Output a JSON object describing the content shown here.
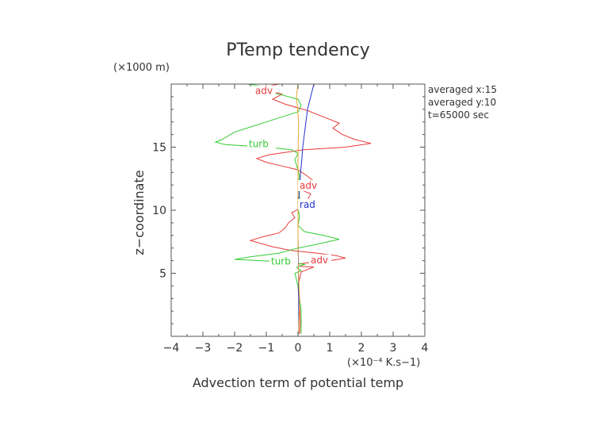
{
  "chart_data": {
    "type": "line",
    "title": "PTemp tendency",
    "xlabel": "Advection term of potential temp",
    "ylabel": "z−coordinate",
    "x_unit": "(×10⁻⁴ K.s−1)",
    "y_unit": "(×1000 m)",
    "xlim": [
      -4,
      4
    ],
    "ylim": [
      0,
      20
    ],
    "x_ticks": [
      -4,
      -3,
      -2,
      -1,
      0,
      1,
      2,
      3,
      4
    ],
    "y_ticks": [
      5,
      10,
      15
    ],
    "x_tick_labels": [
      "−4",
      "−3",
      "−2",
      "−1",
      "0",
      "1",
      "2",
      "3",
      "4"
    ],
    "y_tick_labels": [
      "5",
      "10",
      "15"
    ],
    "grid": false,
    "info_lines": [
      "averaged  x:15",
      "averaged  y:10",
      "t=65000 sec"
    ],
    "series": [
      {
        "name": "adv",
        "color": "#e83a3a",
        "points": [
          [
            0.05,
            0.2
          ],
          [
            0.07,
            1
          ],
          [
            0.06,
            2
          ],
          [
            0.03,
            3
          ],
          [
            0.0,
            4
          ],
          [
            0.1,
            5.1
          ],
          [
            0.3,
            5.3
          ],
          [
            0.5,
            5.5
          ],
          [
            -0.3,
            5.6
          ],
          [
            0.2,
            5.8
          ],
          [
            1.0,
            6.0
          ],
          [
            1.5,
            6.2
          ],
          [
            1.2,
            6.4
          ],
          [
            0.6,
            6.6
          ],
          [
            -0.2,
            6.8
          ],
          [
            -0.8,
            7.1
          ],
          [
            -1.5,
            7.6
          ],
          [
            -1.1,
            7.9
          ],
          [
            -0.6,
            8.2
          ],
          [
            -0.4,
            8.6
          ],
          [
            -0.3,
            9.0
          ],
          [
            -0.1,
            9.4
          ],
          [
            -0.2,
            9.8
          ],
          [
            0.1,
            10.2
          ],
          [
            0.0,
            10.6
          ],
          [
            0.3,
            10.8
          ],
          [
            0.4,
            11.3
          ],
          [
            0.1,
            11.6
          ],
          [
            0.25,
            12.0
          ],
          [
            0.5,
            12.3
          ],
          [
            0.3,
            12.7
          ],
          [
            0.0,
            13.2
          ],
          [
            -0.5,
            13.5
          ],
          [
            -1.0,
            13.8
          ],
          [
            -1.3,
            14.1
          ],
          [
            -0.9,
            14.4
          ],
          [
            0.2,
            14.8
          ],
          [
            1.5,
            15.0
          ],
          [
            2.3,
            15.3
          ],
          [
            1.8,
            15.6
          ],
          [
            1.4,
            16.0
          ],
          [
            1.1,
            16.5
          ],
          [
            1.3,
            16.9
          ],
          [
            0.8,
            17.4
          ],
          [
            0.3,
            17.9
          ],
          [
            -0.4,
            18.4
          ],
          [
            -0.8,
            18.8
          ],
          [
            -0.5,
            19.2
          ],
          [
            -1.0,
            19.5
          ],
          [
            -1.4,
            19.7
          ],
          [
            -0.9,
            19.85
          ],
          [
            -0.6,
            20.0
          ]
        ],
        "labels": [
          {
            "text": "adv",
            "at": [
              -1.35,
              19.2
            ]
          },
          {
            "text": "adv",
            "at": [
              0.05,
              11.7
            ]
          },
          {
            "text": "adv",
            "at": [
              0.4,
              5.8
            ]
          }
        ]
      },
      {
        "name": "turb",
        "color": "#33cc33",
        "points": [
          [
            0.1,
            0.2
          ],
          [
            0.1,
            1
          ],
          [
            0.1,
            2
          ],
          [
            0.05,
            3
          ],
          [
            0.0,
            4
          ],
          [
            -0.1,
            5.0
          ],
          [
            0.1,
            5.2
          ],
          [
            -0.05,
            5.5
          ],
          [
            0.2,
            5.7
          ],
          [
            -0.2,
            5.9
          ],
          [
            -1.2,
            6.0
          ],
          [
            -2.0,
            6.1
          ],
          [
            -1.5,
            6.3
          ],
          [
            -0.6,
            6.6
          ],
          [
            0.0,
            7.0
          ],
          [
            0.6,
            7.3
          ],
          [
            1.3,
            7.7
          ],
          [
            0.8,
            8.0
          ],
          [
            0.2,
            8.3
          ],
          [
            0.0,
            8.8
          ],
          [
            0.05,
            9.5
          ],
          [
            0.0,
            10.2
          ],
          [
            0.05,
            11
          ],
          [
            0.0,
            12
          ],
          [
            0.05,
            12.7
          ],
          [
            0.0,
            13.2
          ],
          [
            -0.1,
            14.0
          ],
          [
            0.0,
            14.5
          ],
          [
            -0.2,
            14.8
          ],
          [
            -1.0,
            15.0
          ],
          [
            -2.3,
            15.2
          ],
          [
            -2.6,
            15.4
          ],
          [
            -2.4,
            15.6
          ],
          [
            -2.0,
            16.2
          ],
          [
            -1.5,
            16.6
          ],
          [
            -1.0,
            17.0
          ],
          [
            -0.5,
            17.4
          ],
          [
            0.0,
            17.8
          ],
          [
            0.1,
            18.3
          ],
          [
            0.0,
            18.8
          ],
          [
            -0.6,
            19.2
          ],
          [
            -1.2,
            19.5
          ],
          [
            -1.0,
            19.8
          ],
          [
            -1.6,
            20.0
          ]
        ],
        "labels": [
          {
            "text": "turb",
            "at": [
              -1.55,
              15.0
            ]
          },
          {
            "text": "turb",
            "at": [
              -0.85,
              5.7
            ]
          }
        ]
      },
      {
        "name": "rad",
        "color": "#2233cc",
        "points": [
          [
            0.02,
            0.2
          ],
          [
            0.02,
            4
          ],
          [
            0.0,
            8
          ],
          [
            0.0,
            10
          ],
          [
            0.03,
            11
          ],
          [
            0.06,
            12
          ],
          [
            0.08,
            13
          ],
          [
            0.12,
            14
          ],
          [
            0.15,
            15
          ],
          [
            0.2,
            16
          ],
          [
            0.25,
            17
          ],
          [
            0.3,
            18
          ],
          [
            0.4,
            19
          ],
          [
            0.5,
            20
          ]
        ],
        "labels": [
          {
            "text": "rad",
            "at": [
              0.05,
              10.2
            ]
          }
        ]
      },
      {
        "name": "",
        "color": "#e8a833",
        "points": [
          [
            0.02,
            0.2
          ],
          [
            0.05,
            3
          ],
          [
            0.0,
            6
          ],
          [
            0.0,
            10
          ],
          [
            0.0,
            14
          ],
          [
            0.02,
            17
          ],
          [
            -0.05,
            19
          ],
          [
            0.0,
            20
          ]
        ],
        "labels": []
      }
    ]
  }
}
